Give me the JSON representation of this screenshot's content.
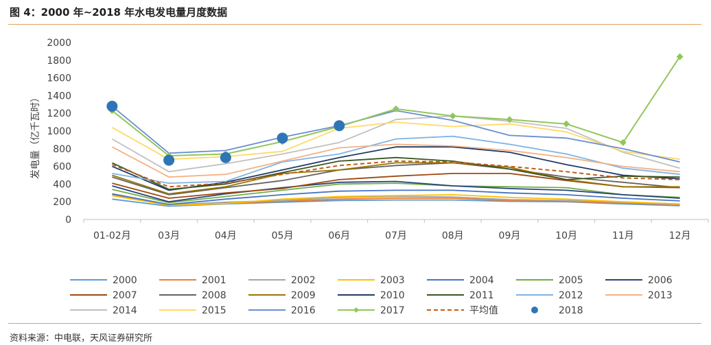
{
  "figure": {
    "title": "图 4：2000 年~2018 年水电发电量月度数据",
    "source": "资料来源：中电联，天风证券研究所"
  },
  "chart_data": {
    "type": "line",
    "ylabel": "发电量（亿千瓦时）",
    "xlabel": "",
    "ylim": [
      0,
      2000
    ],
    "yticks": [
      0,
      200,
      400,
      600,
      800,
      1000,
      1200,
      1400,
      1600,
      1800,
      2000
    ],
    "categories": [
      "01-02月",
      "03月",
      "04月",
      "05月",
      "06月",
      "07月",
      "08月",
      "09月",
      "10月",
      "11月",
      "12月"
    ],
    "grid": false,
    "legend_position": "bottom",
    "series": [
      {
        "name": "2000",
        "color": "#5b9bd5",
        "style": "line",
        "values": [
          230,
          150,
          175,
          195,
          215,
          220,
          220,
          205,
          200,
          175,
          155
        ]
      },
      {
        "name": "2001",
        "color": "#ed7d31",
        "style": "line",
        "values": [
          280,
          160,
          185,
          205,
          230,
          240,
          240,
          215,
          205,
          185,
          170
        ]
      },
      {
        "name": "2002",
        "color": "#a5a5a5",
        "style": "line",
        "values": [
          290,
          165,
          195,
          215,
          250,
          260,
          255,
          225,
          215,
          195,
          175
        ]
      },
      {
        "name": "2003",
        "color": "#ffc000",
        "style": "line",
        "values": [
          270,
          160,
          180,
          230,
          260,
          270,
          280,
          250,
          230,
          200,
          175
        ]
      },
      {
        "name": "2004",
        "color": "#4472c4",
        "style": "line",
        "values": [
          290,
          170,
          230,
          280,
          320,
          330,
          330,
          300,
          280,
          240,
          210
        ]
      },
      {
        "name": "2005",
        "color": "#70ad47",
        "style": "line",
        "values": [
          340,
          190,
          260,
          330,
          400,
          410,
          380,
          370,
          360,
          280,
          250
        ]
      },
      {
        "name": "2006",
        "color": "#264478",
        "style": "line",
        "values": [
          380,
          200,
          290,
          360,
          420,
          430,
          380,
          350,
          330,
          280,
          240
        ]
      },
      {
        "name": "2007",
        "color": "#9e480e",
        "style": "line",
        "values": [
          410,
          240,
          300,
          350,
          450,
          490,
          520,
          520,
          440,
          370,
          360
        ]
      },
      {
        "name": "2008",
        "color": "#636363",
        "style": "line",
        "values": [
          480,
          280,
          360,
          440,
          560,
          610,
          640,
          570,
          480,
          420,
          360
        ]
      },
      {
        "name": "2009",
        "color": "#997300",
        "style": "line",
        "values": [
          500,
          290,
          370,
          520,
          560,
          640,
          640,
          590,
          450,
          370,
          370
        ]
      },
      {
        "name": "2010",
        "color": "#1f3864",
        "style": "line",
        "values": [
          600,
          330,
          420,
          560,
          700,
          820,
          820,
          760,
          620,
          500,
          460
        ]
      },
      {
        "name": "2011",
        "color": "#375623",
        "style": "line",
        "values": [
          640,
          340,
          400,
          530,
          660,
          700,
          660,
          570,
          450,
          490,
          480
        ]
      },
      {
        "name": "2012",
        "color": "#7fb2e5",
        "style": "line",
        "values": [
          520,
          410,
          430,
          650,
          740,
          910,
          940,
          850,
          740,
          580,
          510
        ]
      },
      {
        "name": "2013",
        "color": "#f4b183",
        "style": "line",
        "values": [
          820,
          480,
          510,
          660,
          810,
          850,
          830,
          780,
          700,
          600,
          540
        ]
      },
      {
        "name": "2014",
        "color": "#c0c0c0",
        "style": "line",
        "values": [
          910,
          540,
          630,
          740,
          870,
          1130,
          1170,
          1110,
          1030,
          760,
          580
        ]
      },
      {
        "name": "2015",
        "color": "#ffd966",
        "style": "line",
        "values": [
          1040,
          680,
          710,
          770,
          1030,
          1100,
          1050,
          1080,
          990,
          770,
          680
        ]
      },
      {
        "name": "2016",
        "color": "#698ed0",
        "style": "line",
        "values": [
          1280,
          750,
          780,
          930,
          1060,
          1230,
          1120,
          950,
          920,
          800,
          650
        ]
      },
      {
        "name": "2017",
        "color": "#92c65a",
        "style": "line-diamond",
        "values": [
          1230,
          720,
          740,
          880,
          1050,
          1250,
          1170,
          1130,
          1080,
          870,
          1840
        ]
      },
      {
        "name": "平均值",
        "color": "#c65911",
        "style": "dashed",
        "values": [
          620,
          370,
          410,
          510,
          610,
          660,
          650,
          600,
          540,
          470,
          450
        ]
      },
      {
        "name": "2018",
        "color": "#2e75b6",
        "style": "dots",
        "values": [
          1280,
          670,
          700,
          920,
          1060,
          null,
          null,
          null,
          null,
          null,
          null
        ]
      }
    ]
  }
}
